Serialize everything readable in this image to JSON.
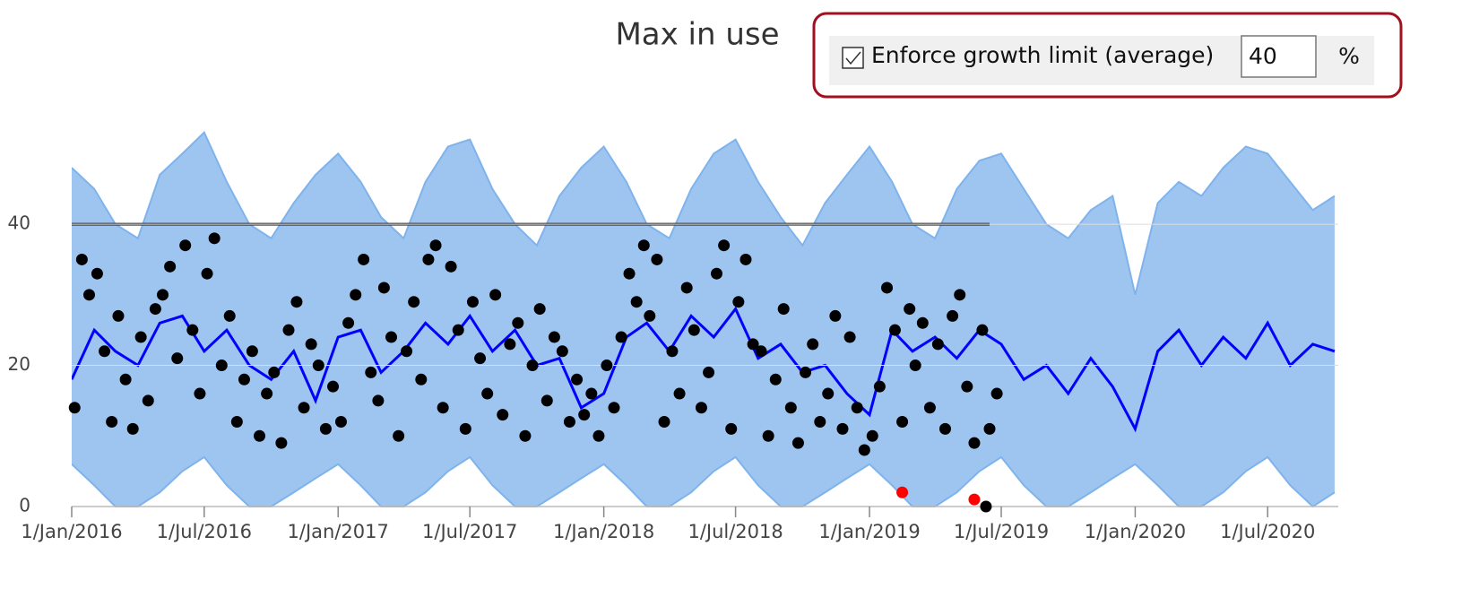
{
  "controls": {
    "title": "Max in use",
    "checkbox": {
      "label": "Enforce growth limit (average)",
      "checked": true
    },
    "input": {
      "value": "40",
      "unit": "%"
    }
  },
  "chart_data": {
    "type": "line",
    "xlim": [
      "2016-01-01",
      "2020-10-06"
    ],
    "ylim": [
      0,
      55
    ],
    "yticks": [
      0,
      20,
      40
    ],
    "grid": true,
    "xticks": [
      {
        "value": "2016-01-01",
        "label": "1/Jan/2016"
      },
      {
        "value": "2016-07-01",
        "label": "1/Jul/2016"
      },
      {
        "value": "2017-01-01",
        "label": "1/Jan/2017"
      },
      {
        "value": "2017-07-01",
        "label": "1/Jul/2017"
      },
      {
        "value": "2018-01-01",
        "label": "1/Jan/2018"
      },
      {
        "value": "2018-07-01",
        "label": "1/Jul/2018"
      },
      {
        "value": "2019-01-01",
        "label": "1/Jan/2019"
      },
      {
        "value": "2019-07-01",
        "label": "1/Jul/2019"
      },
      {
        "value": "2020-01-01",
        "label": "1/Jan/2020"
      },
      {
        "value": "2020-07-01",
        "label": "1/Jul/2020"
      }
    ],
    "series": [
      {
        "type": "area",
        "color": "#9ec5f0",
        "edge": "#7eb3ec",
        "x": [
          "2016-01-01",
          "2016-02-01",
          "2016-03-01",
          "2016-04-01",
          "2016-05-01",
          "2016-06-01",
          "2016-07-01",
          "2016-08-01",
          "2016-09-01",
          "2016-10-01",
          "2016-11-01",
          "2016-12-01",
          "2017-01-01",
          "2017-02-01",
          "2017-03-01",
          "2017-04-01",
          "2017-05-01",
          "2017-06-01",
          "2017-07-01",
          "2017-08-01",
          "2017-09-01",
          "2017-10-01",
          "2017-11-01",
          "2017-12-01",
          "2018-01-01",
          "2018-02-01",
          "2018-03-01",
          "2018-04-01",
          "2018-05-01",
          "2018-06-01",
          "2018-07-01",
          "2018-08-01",
          "2018-09-01",
          "2018-10-01",
          "2018-11-01",
          "2018-12-01",
          "2019-01-01",
          "2019-02-01",
          "2019-03-01",
          "2019-04-01",
          "2019-05-01",
          "2019-06-01",
          "2019-07-01",
          "2019-08-01",
          "2019-09-01",
          "2019-10-01",
          "2019-11-01",
          "2019-12-01",
          "2020-01-01",
          "2020-02-01",
          "2020-03-01",
          "2020-04-01",
          "2020-05-01",
          "2020-06-01",
          "2020-07-01",
          "2020-08-01",
          "2020-09-01",
          "2020-10-01"
        ],
        "values": [
          48,
          45,
          40,
          38,
          47,
          50,
          53,
          46,
          40,
          38,
          43,
          47,
          50,
          46,
          41,
          38,
          46,
          51,
          52,
          45,
          40,
          37,
          44,
          48,
          51,
          46,
          40,
          38,
          45,
          50,
          52,
          46,
          41,
          37,
          43,
          47,
          51,
          46,
          40,
          38,
          45,
          49,
          50,
          45,
          40,
          38,
          42,
          44,
          30,
          43,
          46,
          44,
          48,
          51,
          50,
          46,
          42,
          44
        ],
        "lower": [
          6,
          3,
          0,
          0,
          2,
          5,
          7,
          3,
          0,
          0,
          2,
          4,
          6,
          3,
          0,
          0,
          2,
          5,
          7,
          3,
          0,
          0,
          2,
          4,
          6,
          3,
          0,
          0,
          2,
          5,
          7,
          3,
          0,
          0,
          2,
          4,
          6,
          3,
          0,
          0,
          2,
          5,
          7,
          3,
          0,
          0,
          2,
          4,
          6,
          3,
          0,
          0,
          2,
          5,
          7,
          3,
          0,
          2
        ]
      },
      {
        "type": "line",
        "color": "#0000ff",
        "x": [
          "2016-01-01",
          "2016-02-01",
          "2016-03-01",
          "2016-04-01",
          "2016-05-01",
          "2016-06-01",
          "2016-07-01",
          "2016-08-01",
          "2016-09-01",
          "2016-10-01",
          "2016-11-01",
          "2016-12-01",
          "2017-01-01",
          "2017-02-01",
          "2017-03-01",
          "2017-04-01",
          "2017-05-01",
          "2017-06-01",
          "2017-07-01",
          "2017-08-01",
          "2017-09-01",
          "2017-10-01",
          "2017-11-01",
          "2017-12-01",
          "2018-01-01",
          "2018-02-01",
          "2018-03-01",
          "2018-04-01",
          "2018-05-01",
          "2018-06-01",
          "2018-07-01",
          "2018-08-01",
          "2018-09-01",
          "2018-10-01",
          "2018-11-01",
          "2018-12-01",
          "2019-01-01",
          "2019-02-01",
          "2019-03-01",
          "2019-04-01",
          "2019-05-01",
          "2019-06-01",
          "2019-07-01",
          "2019-08-01",
          "2019-09-01",
          "2019-10-01",
          "2019-11-01",
          "2019-12-01",
          "2020-01-01",
          "2020-02-01",
          "2020-03-01",
          "2020-04-01",
          "2020-05-01",
          "2020-06-01",
          "2020-07-01",
          "2020-08-01",
          "2020-09-01",
          "2020-10-01"
        ],
        "values": [
          18,
          25,
          22,
          20,
          26,
          27,
          22,
          25,
          20,
          18,
          22,
          15,
          24,
          25,
          19,
          22,
          26,
          23,
          27,
          22,
          25,
          20,
          21,
          14,
          16,
          24,
          26,
          22,
          27,
          24,
          28,
          21,
          23,
          19,
          20,
          16,
          13,
          25,
          22,
          24,
          21,
          25,
          23,
          18,
          20,
          16,
          21,
          17,
          11,
          22,
          25,
          20,
          24,
          21,
          26,
          20,
          23,
          22
        ]
      },
      {
        "type": "line",
        "color": "#333333",
        "x": [
          "2016-01-01",
          "2019-06-15"
        ],
        "values": [
          40,
          40
        ]
      },
      {
        "type": "scatter",
        "color": "#000000",
        "x": [
          "2016-01-05",
          "2016-01-15",
          "2016-01-25",
          "2016-02-05",
          "2016-02-15",
          "2016-02-25",
          "2016-03-05",
          "2016-03-15",
          "2016-03-25",
          "2016-04-05",
          "2016-04-15",
          "2016-04-25",
          "2016-05-05",
          "2016-05-15",
          "2016-05-25",
          "2016-06-05",
          "2016-06-15",
          "2016-06-25",
          "2016-07-05",
          "2016-07-15",
          "2016-07-25",
          "2016-08-05",
          "2016-08-15",
          "2016-08-25",
          "2016-09-05",
          "2016-09-15",
          "2016-09-25",
          "2016-10-05",
          "2016-10-15",
          "2016-10-25",
          "2016-11-05",
          "2016-11-15",
          "2016-11-25",
          "2016-12-05",
          "2016-12-15",
          "2016-12-25",
          "2017-01-05",
          "2017-01-15",
          "2017-01-25",
          "2017-02-05",
          "2017-02-15",
          "2017-02-25",
          "2017-03-05",
          "2017-03-15",
          "2017-03-25",
          "2017-04-05",
          "2017-04-15",
          "2017-04-25",
          "2017-05-05",
          "2017-05-15",
          "2017-05-25",
          "2017-06-05",
          "2017-06-15",
          "2017-06-25",
          "2017-07-05",
          "2017-07-15",
          "2017-07-25",
          "2017-08-05",
          "2017-08-15",
          "2017-08-25",
          "2017-09-05",
          "2017-09-15",
          "2017-09-25",
          "2017-10-05",
          "2017-10-15",
          "2017-10-25",
          "2017-11-05",
          "2017-11-15",
          "2017-11-25",
          "2017-12-05",
          "2017-12-15",
          "2017-12-25",
          "2018-01-05",
          "2018-01-15",
          "2018-01-25",
          "2018-02-05",
          "2018-02-15",
          "2018-02-25",
          "2018-03-05",
          "2018-03-15",
          "2018-03-25",
          "2018-04-05",
          "2018-04-15",
          "2018-04-25",
          "2018-05-05",
          "2018-05-15",
          "2018-05-25",
          "2018-06-05",
          "2018-06-15",
          "2018-06-25",
          "2018-07-05",
          "2018-07-15",
          "2018-07-25",
          "2018-08-05",
          "2018-08-15",
          "2018-08-25",
          "2018-09-05",
          "2018-09-15",
          "2018-09-25",
          "2018-10-05",
          "2018-10-15",
          "2018-10-25",
          "2018-11-05",
          "2018-11-15",
          "2018-11-25",
          "2018-12-05",
          "2018-12-15",
          "2018-12-25",
          "2019-01-05",
          "2019-01-15",
          "2019-01-25",
          "2019-02-05",
          "2019-02-15",
          "2019-02-25",
          "2019-03-05",
          "2019-03-15",
          "2019-03-25",
          "2019-04-05",
          "2019-04-15",
          "2019-04-25",
          "2019-05-05",
          "2019-05-15",
          "2019-05-25",
          "2019-06-05",
          "2019-06-15",
          "2019-06-25",
          "2019-06-10"
        ],
        "values": [
          14,
          35,
          30,
          33,
          22,
          12,
          27,
          18,
          11,
          24,
          15,
          28,
          30,
          34,
          21,
          37,
          25,
          16,
          33,
          38,
          20,
          27,
          12,
          18,
          22,
          10,
          16,
          19,
          9,
          25,
          29,
          14,
          23,
          20,
          11,
          17,
          12,
          26,
          30,
          35,
          19,
          15,
          31,
          24,
          10,
          22,
          29,
          18,
          35,
          37,
          14,
          34,
          25,
          11,
          29,
          21,
          16,
          30,
          13,
          23,
          26,
          10,
          20,
          28,
          15,
          24,
          22,
          12,
          18,
          13,
          16,
          10,
          20,
          14,
          24,
          33,
          29,
          37,
          27,
          35,
          12,
          22,
          16,
          31,
          25,
          14,
          19,
          33,
          37,
          11,
          29,
          35,
          23,
          22,
          10,
          18,
          28,
          14,
          9,
          19,
          23,
          12,
          16,
          27,
          11,
          24,
          14,
          8,
          10,
          17,
          31,
          25,
          12,
          28,
          20,
          26,
          14,
          23,
          11,
          27,
          30,
          17,
          9,
          25,
          11,
          16,
          0
        ]
      },
      {
        "type": "scatter",
        "color": "#ff0000",
        "x": [
          "2019-02-15",
          "2019-05-25"
        ],
        "values": [
          2,
          1
        ]
      }
    ]
  }
}
